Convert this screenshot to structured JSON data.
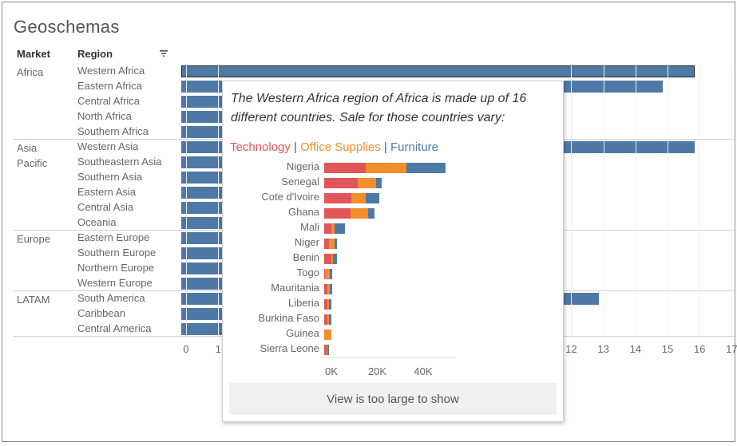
{
  "title": "Geoschemas",
  "headers": {
    "market": "Market",
    "region": "Region"
  },
  "colors": {
    "bar": "#4e79a7",
    "technology": "#e15759",
    "office_supplies": "#f28e2b",
    "furniture": "#4e79a7"
  },
  "markets": [
    {
      "name": "Africa",
      "regions": [
        "Western Africa",
        "Eastern Africa",
        "Central Africa",
        "North Africa",
        "Southern Africa"
      ]
    },
    {
      "name": "Asia\nPacific",
      "regions": [
        "Western Asia",
        "Southeastern Asia",
        "Southern Asia",
        "Eastern Asia",
        "Central Asia",
        "Oceania"
      ]
    },
    {
      "name": "Europe",
      "regions": [
        "Eastern Europe",
        "Southern Europe",
        "Northern Europe",
        "Western Europe"
      ]
    },
    {
      "name": "LATAM",
      "regions": [
        "South America",
        "Caribbean",
        "Central America"
      ]
    }
  ],
  "chart_data": {
    "type": "bar",
    "orientation": "horizontal",
    "title": "Geoschemas",
    "xlabel": "",
    "ylabel": "",
    "xlim": [
      0,
      17
    ],
    "xticks": [
      "0",
      "1",
      "12",
      "13",
      "14",
      "15",
      "16",
      "17"
    ],
    "categories": [
      "Western Africa",
      "Eastern Africa",
      "Central Africa",
      "North Africa",
      "Southern Africa",
      "Western Asia",
      "Southeastern Asia",
      "Southern Asia",
      "Eastern Asia",
      "Central Asia",
      "Oceania",
      "Eastern Europe",
      "Southern Europe",
      "Northern Europe",
      "Western Europe",
      "South America",
      "Caribbean",
      "Central America"
    ],
    "values": [
      16,
      15,
      null,
      null,
      null,
      16,
      null,
      null,
      null,
      null,
      null,
      null,
      null,
      null,
      null,
      13,
      null,
      null
    ],
    "selected": "Western Africa"
  },
  "tooltip": {
    "text": "The Western Africa region of Africa is made up of 16 different countries. Sale for those countries vary:",
    "legend": [
      {
        "label": "Technology",
        "color": "#e15759"
      },
      {
        "label": "Office Supplies",
        "color": "#f28e2b"
      },
      {
        "label": "Furniture",
        "color": "#4e79a7"
      }
    ],
    "separator": "|",
    "chart_data": {
      "type": "bar",
      "orientation": "horizontal",
      "stacked": true,
      "categories": [
        "Nigeria",
        "Senegal",
        "Cote d'Ivoire",
        "Ghana",
        "Mali",
        "Niger",
        "Benin",
        "Togo",
        "Mauritania",
        "Liberia",
        "Burkina Faso",
        "Guinea",
        "Sierra Leone"
      ],
      "series": [
        {
          "name": "Technology",
          "values": [
            18000,
            14500,
            12000,
            11500,
            3000,
            2000,
            3000,
            500,
            1500,
            1500,
            1500,
            0,
            1000
          ]
        },
        {
          "name": "Office Supplies",
          "values": [
            18000,
            8000,
            6000,
            7500,
            1500,
            2500,
            1000,
            2000,
            1000,
            500,
            500,
            3000,
            500
          ]
        },
        {
          "name": "Furniture",
          "values": [
            17000,
            2500,
            6000,
            3000,
            4500,
            1000,
            1500,
            1000,
            1000,
            1000,
            1000,
            0,
            500
          ]
        }
      ],
      "xticks": [
        "0K",
        "20K",
        "40K"
      ],
      "xlim": [
        0,
        58000
      ]
    },
    "footer": "View is too large to show"
  }
}
